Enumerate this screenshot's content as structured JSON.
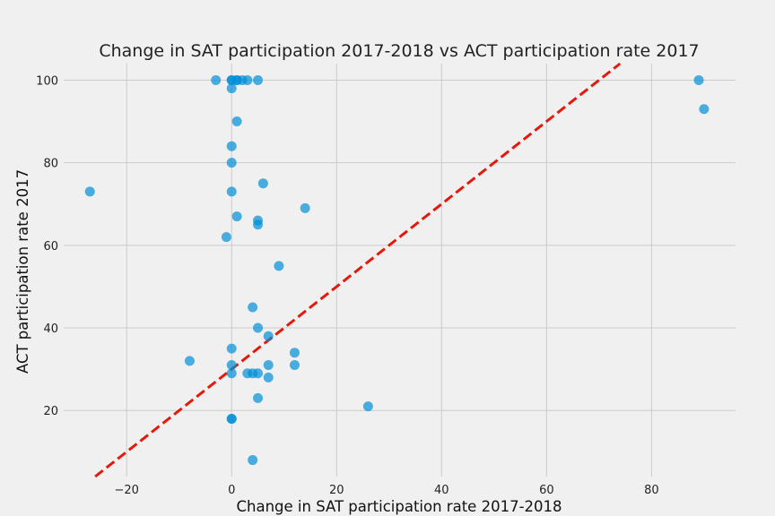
{
  "chart_data": {
    "type": "scatter",
    "title": "Change in SAT participation 2017-2018 vs ACT participation rate 2017",
    "xlabel": "Change in SAT participation rate 2017-2018",
    "ylabel": "ACT participation rate 2017",
    "xlim": [
      -32,
      96
    ],
    "ylim": [
      4,
      104
    ],
    "xticks": [
      -20,
      0,
      20,
      40,
      60,
      80
    ],
    "yticks": [
      20,
      40,
      60,
      80,
      100
    ],
    "grid": true,
    "point_color": "#008fd5",
    "reference_line": {
      "style": "dashed",
      "color": "#e5190b",
      "slope": 1,
      "intercept": 30
    },
    "points": [
      {
        "x": -27,
        "y": 73
      },
      {
        "x": -8,
        "y": 32
      },
      {
        "x": -3,
        "y": 100
      },
      {
        "x": -1,
        "y": 62
      },
      {
        "x": 0,
        "y": 100
      },
      {
        "x": 0,
        "y": 100
      },
      {
        "x": 1,
        "y": 100
      },
      {
        "x": 1,
        "y": 100
      },
      {
        "x": 2,
        "y": 100
      },
      {
        "x": 3,
        "y": 100
      },
      {
        "x": 5,
        "y": 100
      },
      {
        "x": 0,
        "y": 98
      },
      {
        "x": 1,
        "y": 90
      },
      {
        "x": 0,
        "y": 84
      },
      {
        "x": 0,
        "y": 80
      },
      {
        "x": 0,
        "y": 73
      },
      {
        "x": 6,
        "y": 75
      },
      {
        "x": 1,
        "y": 67
      },
      {
        "x": 5,
        "y": 66
      },
      {
        "x": 5,
        "y": 65
      },
      {
        "x": 14,
        "y": 69
      },
      {
        "x": 9,
        "y": 55
      },
      {
        "x": 4,
        "y": 45
      },
      {
        "x": 5,
        "y": 40
      },
      {
        "x": 7,
        "y": 38
      },
      {
        "x": 0,
        "y": 35
      },
      {
        "x": 12,
        "y": 34
      },
      {
        "x": 0,
        "y": 31
      },
      {
        "x": 7,
        "y": 31
      },
      {
        "x": 12,
        "y": 31
      },
      {
        "x": 0,
        "y": 29
      },
      {
        "x": 3,
        "y": 29
      },
      {
        "x": 4,
        "y": 29
      },
      {
        "x": 5,
        "y": 29
      },
      {
        "x": 7,
        "y": 28
      },
      {
        "x": 5,
        "y": 23
      },
      {
        "x": 26,
        "y": 21
      },
      {
        "x": 0,
        "y": 18
      },
      {
        "x": 0,
        "y": 18
      },
      {
        "x": 4,
        "y": 8
      },
      {
        "x": 89,
        "y": 100
      },
      {
        "x": 90,
        "y": 93
      }
    ]
  }
}
